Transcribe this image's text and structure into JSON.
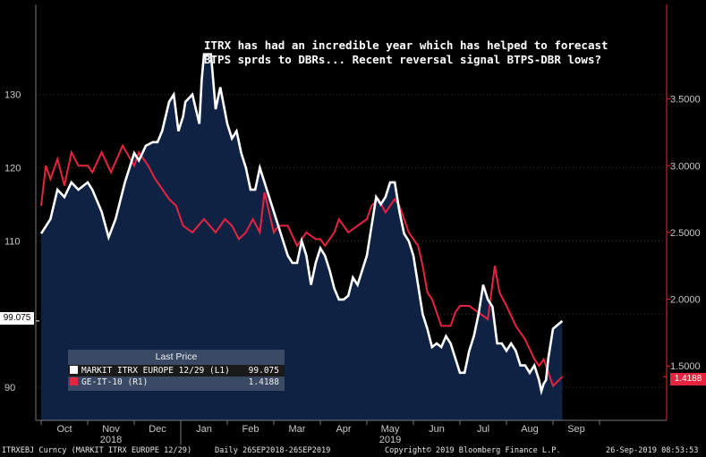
{
  "chart_data": {
    "type": "line",
    "annotation": [
      "ITRX has had an incredible year which has helped to forecast",
      "BTPS sprds to DBRs... Recent reversal signal BTPS-DBR lows?"
    ],
    "x_labels": [
      "Oct",
      "Nov",
      "Dec",
      "Jan",
      "Feb",
      "Mar",
      "Apr",
      "May",
      "Jun",
      "Jul",
      "Aug",
      "Sep"
    ],
    "year_labels": [
      "2018",
      "2019"
    ],
    "y_left": {
      "ticks": [
        90,
        100,
        110,
        120,
        130
      ],
      "labels": [
        "90",
        "",
        "110",
        "120",
        "130"
      ],
      "range": [
        85.5,
        142.3
      ]
    },
    "y_right": {
      "ticks": [
        1.5,
        2.0,
        2.5,
        3.0,
        3.5
      ],
      "labels": [
        "1.5000",
        "2.0000",
        "2.5000",
        "3.0000",
        "3.5000"
      ],
      "range": [
        1.0923,
        4.2077
      ]
    },
    "series": [
      {
        "name": "MARKIT ITRX EUROPE 12/29  (L1)",
        "axis": "left",
        "color": "#ffffff",
        "last": "99.075",
        "points": [
          [
            0,
            111
          ],
          [
            0.1,
            112
          ],
          [
            0.2,
            113
          ],
          [
            0.35,
            117
          ],
          [
            0.5,
            116
          ],
          [
            0.65,
            118
          ],
          [
            0.8,
            117
          ],
          [
            1,
            118
          ],
          [
            1.1,
            117
          ],
          [
            1.3,
            114
          ],
          [
            1.45,
            110.5
          ],
          [
            1.6,
            113
          ],
          [
            1.8,
            118
          ],
          [
            2.0,
            122
          ],
          [
            2.1,
            121
          ],
          [
            2.25,
            123
          ],
          [
            2.4,
            123.5
          ],
          [
            2.5,
            123.5
          ],
          [
            2.6,
            125
          ],
          [
            2.75,
            129
          ],
          [
            2.85,
            130
          ],
          [
            2.95,
            125
          ],
          [
            3.05,
            127
          ],
          [
            3.1,
            129
          ],
          [
            3.25,
            130
          ],
          [
            3.4,
            126
          ],
          [
            3.45,
            132
          ],
          [
            3.5,
            135.5
          ],
          [
            3.65,
            135.5
          ],
          [
            3.75,
            128
          ],
          [
            3.85,
            131
          ],
          [
            4.0,
            126
          ],
          [
            4.1,
            124
          ],
          [
            4.2,
            125
          ],
          [
            4.3,
            122
          ],
          [
            4.4,
            120
          ],
          [
            4.5,
            117
          ],
          [
            4.6,
            117
          ],
          [
            4.7,
            120
          ],
          [
            4.8,
            118
          ],
          [
            4.9,
            116
          ],
          [
            5.0,
            114
          ],
          [
            5.1,
            112
          ],
          [
            5.2,
            110
          ],
          [
            5.3,
            108
          ],
          [
            5.4,
            107
          ],
          [
            5.5,
            107
          ],
          [
            5.6,
            110
          ],
          [
            5.7,
            108
          ],
          [
            5.8,
            104
          ],
          [
            5.9,
            107
          ],
          [
            6.0,
            109
          ],
          [
            6.1,
            108
          ],
          [
            6.2,
            106
          ],
          [
            6.3,
            103.5
          ],
          [
            6.4,
            102
          ],
          [
            6.5,
            102
          ],
          [
            6.6,
            102.5
          ],
          [
            6.7,
            105
          ],
          [
            6.8,
            104
          ],
          [
            6.9,
            106
          ],
          [
            7.0,
            108
          ],
          [
            7.1,
            112
          ],
          [
            7.2,
            116
          ],
          [
            7.3,
            115
          ],
          [
            7.4,
            116
          ],
          [
            7.5,
            118
          ],
          [
            7.6,
            118
          ],
          [
            7.7,
            114
          ],
          [
            7.8,
            111
          ],
          [
            7.9,
            110
          ],
          [
            8.0,
            108
          ],
          [
            8.1,
            104
          ],
          [
            8.2,
            100
          ],
          [
            8.3,
            98
          ],
          [
            8.4,
            95.5
          ],
          [
            8.5,
            96
          ],
          [
            8.6,
            95.5
          ],
          [
            8.7,
            97
          ],
          [
            8.8,
            96
          ],
          [
            8.9,
            94
          ],
          [
            9.0,
            92
          ],
          [
            9.1,
            92
          ],
          [
            9.2,
            95
          ],
          [
            9.3,
            97
          ],
          [
            9.4,
            100
          ],
          [
            9.5,
            104
          ],
          [
            9.6,
            102
          ],
          [
            9.7,
            101
          ],
          [
            9.8,
            96
          ],
          [
            9.9,
            96
          ],
          [
            10.0,
            95
          ],
          [
            10.1,
            96
          ],
          [
            10.2,
            95
          ],
          [
            10.3,
            93
          ],
          [
            10.4,
            93
          ],
          [
            10.5,
            92
          ],
          [
            10.6,
            93
          ],
          [
            10.7,
            91
          ],
          [
            10.75,
            89.5
          ],
          [
            10.8,
            90.5
          ],
          [
            10.85,
            91
          ],
          [
            10.9,
            94
          ],
          [
            10.95,
            96
          ],
          [
            11.0,
            98
          ],
          [
            11.2,
            99.075
          ]
        ]
      },
      {
        "name": "GE-IT-10  (R1)",
        "axis": "right",
        "color": "#e8233f",
        "last": "1.4188",
        "points": [
          [
            0,
            2.7
          ],
          [
            0.1,
            3.0
          ],
          [
            0.2,
            2.9
          ],
          [
            0.35,
            3.05
          ],
          [
            0.5,
            2.85
          ],
          [
            0.65,
            3.1
          ],
          [
            0.8,
            3.0
          ],
          [
            1,
            3.0
          ],
          [
            1.1,
            2.95
          ],
          [
            1.3,
            3.1
          ],
          [
            1.5,
            2.95
          ],
          [
            1.75,
            3.15
          ],
          [
            2.0,
            3.0
          ],
          [
            2.1,
            3.1
          ],
          [
            2.3,
            3.0
          ],
          [
            2.45,
            2.9
          ],
          [
            2.55,
            2.85
          ],
          [
            2.75,
            2.75
          ],
          [
            2.9,
            2.7
          ],
          [
            3.05,
            2.55
          ],
          [
            3.25,
            2.5
          ],
          [
            3.5,
            2.6
          ],
          [
            3.75,
            2.5
          ],
          [
            3.95,
            2.6
          ],
          [
            4.1,
            2.55
          ],
          [
            4.25,
            2.45
          ],
          [
            4.4,
            2.5
          ],
          [
            4.55,
            2.6
          ],
          [
            4.7,
            2.5
          ],
          [
            4.8,
            2.8
          ],
          [
            4.9,
            2.65
          ],
          [
            5.0,
            2.5
          ],
          [
            5.1,
            2.55
          ],
          [
            5.3,
            2.55
          ],
          [
            5.5,
            2.4
          ],
          [
            5.7,
            2.5
          ],
          [
            5.9,
            2.45
          ],
          [
            6.0,
            2.45
          ],
          [
            6.1,
            2.4
          ],
          [
            6.3,
            2.5
          ],
          [
            6.4,
            2.6
          ],
          [
            6.6,
            2.5
          ],
          [
            6.8,
            2.55
          ],
          [
            7.0,
            2.6
          ],
          [
            7.1,
            2.7
          ],
          [
            7.25,
            2.75
          ],
          [
            7.4,
            2.65
          ],
          [
            7.5,
            2.7
          ],
          [
            7.6,
            2.75
          ],
          [
            7.7,
            2.7
          ],
          [
            7.8,
            2.6
          ],
          [
            7.9,
            2.5
          ],
          [
            8.0,
            2.45
          ],
          [
            8.1,
            2.4
          ],
          [
            8.2,
            2.25
          ],
          [
            8.3,
            2.05
          ],
          [
            8.4,
            2.0
          ],
          [
            8.5,
            1.9
          ],
          [
            8.6,
            1.8
          ],
          [
            8.8,
            1.8
          ],
          [
            8.9,
            1.9
          ],
          [
            9.0,
            1.95
          ],
          [
            9.2,
            1.95
          ],
          [
            9.4,
            1.9
          ],
          [
            9.6,
            1.85
          ],
          [
            9.75,
            2.25
          ],
          [
            9.85,
            2.05
          ],
          [
            10.0,
            1.95
          ],
          [
            10.2,
            1.8
          ],
          [
            10.4,
            1.7
          ],
          [
            10.6,
            1.55
          ],
          [
            10.7,
            1.5
          ],
          [
            10.8,
            1.55
          ],
          [
            10.9,
            1.45
          ],
          [
            11.0,
            1.35
          ],
          [
            11.2,
            1.4188
          ]
        ]
      }
    ]
  },
  "legend": {
    "title": "Last Price",
    "rows": [
      {
        "name": "MARKIT ITRX EUROPE 12/29  (L1)",
        "value": "99.075",
        "color": "#ffffff"
      },
      {
        "name": "GE-IT-10  (R1)",
        "value": "1.4188",
        "color": "#e8233f"
      }
    ]
  },
  "badges": {
    "left": "99.075",
    "right": "1.4188"
  },
  "footer": {
    "ticker": "ITRXEBJ Curncy (MARKIT ITRX EUROPE 12/29)",
    "period": "Daily 26SEP2018-26SEP2019",
    "copyright": "Copyright© 2019 Bloomberg Finance L.P.",
    "timestamp": "26-Sep-2019 08:53:53"
  }
}
